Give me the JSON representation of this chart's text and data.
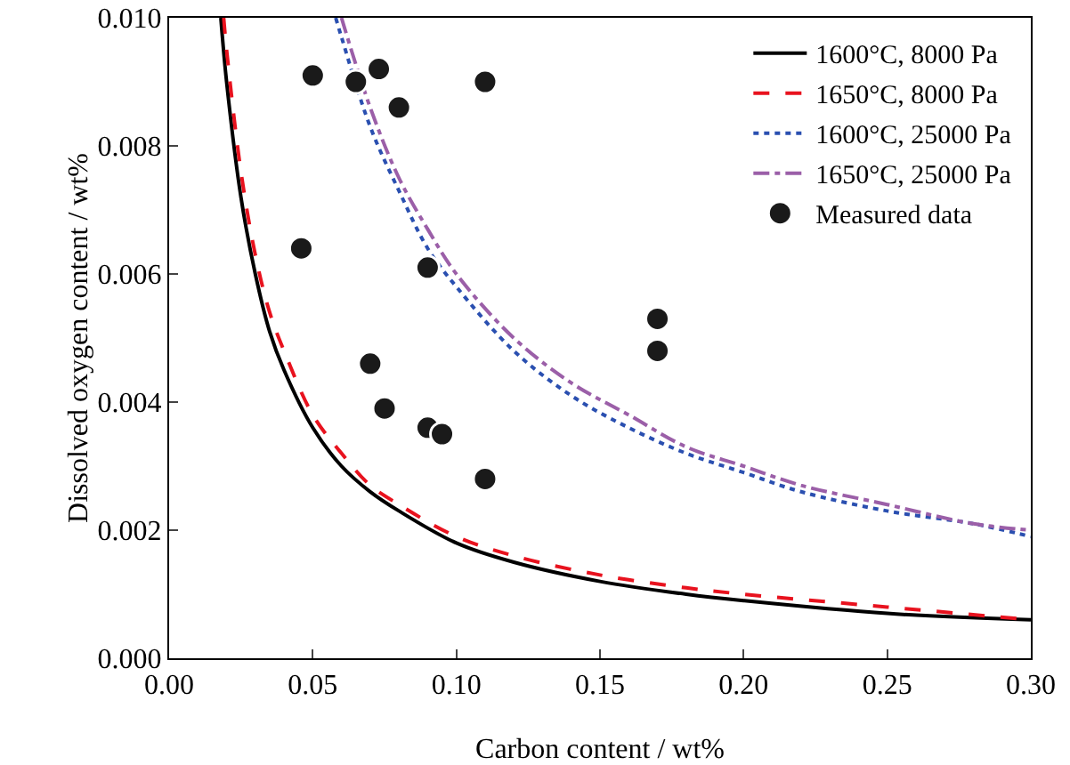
{
  "chart_data": {
    "type": "line",
    "xlabel": "Carbon content / wt%",
    "ylabel": "Dissolved oxygen content / wt%",
    "xlim": [
      0,
      0.3
    ],
    "xticks": [
      {
        "value": 0,
        "label": "0.00"
      },
      {
        "value": 0.05,
        "label": "0.05"
      },
      {
        "value": 0.1,
        "label": "0.10"
      },
      {
        "value": 0.15,
        "label": "0.15"
      },
      {
        "value": 0.2,
        "label": "0.20"
      },
      {
        "value": 0.25,
        "label": "0.25"
      },
      {
        "value": 0.3,
        "label": "0.30"
      }
    ],
    "ylim": [
      0,
      0.01
    ],
    "yticks": [
      {
        "value": 0,
        "label": "0.000"
      },
      {
        "value": 0.002,
        "label": "0.002"
      },
      {
        "value": 0.004,
        "label": "0.004"
      },
      {
        "value": 0.006,
        "label": "0.006"
      },
      {
        "value": 0.008,
        "label": "0.008"
      },
      {
        "value": 0.01,
        "label": "0.010"
      }
    ],
    "grid": false,
    "legend": "top right",
    "series": [
      {
        "name": "1600°C, 8000 Pa",
        "color": "#000000",
        "line_style": "solid",
        "x": [
          0.018,
          0.02,
          0.025,
          0.03,
          0.035,
          0.04,
          0.05,
          0.06,
          0.07,
          0.08,
          0.1,
          0.12,
          0.15,
          0.18,
          0.2,
          0.25,
          0.3
        ],
        "values": [
          0.01,
          0.009,
          0.0072,
          0.006,
          0.0051,
          0.0045,
          0.0036,
          0.003,
          0.0026,
          0.0023,
          0.0018,
          0.0015,
          0.0012,
          0.001,
          0.0009,
          0.0007,
          0.0006
        ]
      },
      {
        "name": "1650°C, 8000 Pa",
        "color": "#e8121e",
        "line_style": "dashed",
        "x": [
          0.019,
          0.02,
          0.025,
          0.03,
          0.035,
          0.04,
          0.05,
          0.06,
          0.07,
          0.08,
          0.1,
          0.12,
          0.15,
          0.18,
          0.2,
          0.25,
          0.3
        ],
        "values": [
          0.01,
          0.0095,
          0.0076,
          0.0063,
          0.0054,
          0.0048,
          0.0038,
          0.0032,
          0.0027,
          0.0024,
          0.0019,
          0.0016,
          0.0013,
          0.0011,
          0.001,
          0.0008,
          0.0006
        ]
      },
      {
        "name": "1600°C, 25000 Pa",
        "color": "#2a4fb0",
        "line_style": "dotted",
        "x": [
          0.058,
          0.06,
          0.07,
          0.08,
          0.09,
          0.1,
          0.12,
          0.14,
          0.16,
          0.18,
          0.2,
          0.22,
          0.25,
          0.28,
          0.3
        ],
        "values": [
          0.01,
          0.0097,
          0.0083,
          0.0073,
          0.0064,
          0.0058,
          0.0048,
          0.0041,
          0.0036,
          0.0032,
          0.0029,
          0.0026,
          0.0023,
          0.0021,
          0.0019
        ]
      },
      {
        "name": "1650°C, 25000 Pa",
        "color": "#9b5fa8",
        "line_style": "dashdot",
        "x": [
          0.06,
          0.07,
          0.08,
          0.09,
          0.1,
          0.12,
          0.14,
          0.16,
          0.18,
          0.2,
          0.22,
          0.25,
          0.28,
          0.3
        ],
        "values": [
          0.01,
          0.0086,
          0.0075,
          0.0067,
          0.006,
          0.005,
          0.0043,
          0.0038,
          0.0033,
          0.003,
          0.0027,
          0.0024,
          0.0021,
          0.002
        ]
      },
      {
        "name": "Measured data",
        "type": "scatter",
        "marker": "circle",
        "color": "#1a1a1a",
        "x": [
          0.046,
          0.05,
          0.065,
          0.073,
          0.08,
          0.11,
          0.09,
          0.07,
          0.075,
          0.09,
          0.095,
          0.11,
          0.17,
          0.17
        ],
        "values": [
          0.0064,
          0.0091,
          0.009,
          0.0092,
          0.0086,
          0.009,
          0.0061,
          0.0046,
          0.0039,
          0.0036,
          0.0035,
          0.0028,
          0.0053,
          0.0048
        ]
      }
    ]
  }
}
